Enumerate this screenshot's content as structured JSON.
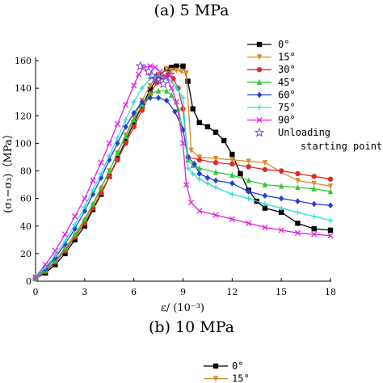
{
  "chart_data": [
    {
      "type": "line",
      "title": "(a) 5 MPa",
      "xlabel": "ε/ (10⁻³)",
      "ylabel": "(σ₁−σ₃)（MPa）",
      "xlim": [
        0,
        18
      ],
      "ylim": [
        0,
        160
      ],
      "xticks": [
        0,
        3,
        6,
        9,
        12,
        15,
        18
      ],
      "yticks": [
        0,
        20,
        40,
        60,
        80,
        100,
        120,
        140,
        160
      ],
      "grid": false,
      "legend_position": "top-right",
      "series": [
        {
          "name": "0°",
          "color": "#000000",
          "marker": "square",
          "x": [
            0,
            0.6,
            1.2,
            1.8,
            2.4,
            3.0,
            3.5,
            4.0,
            4.5,
            5.0,
            5.5,
            6.0,
            6.5,
            7.0,
            7.5,
            8.0,
            8.3,
            8.6,
            9.0,
            9.3,
            9.6,
            10.0,
            10.5,
            11.0,
            11.5,
            12.0,
            12.5,
            13.0,
            13.5,
            14.0,
            15.0,
            16.0,
            17.0,
            18.0
          ],
          "y": [
            2,
            6,
            12,
            20,
            30,
            40,
            52,
            63,
            76,
            89,
            102,
            115,
            127,
            139,
            149,
            154,
            155,
            156,
            156,
            145,
            125,
            115,
            112,
            108,
            102,
            92,
            78,
            66,
            58,
            53,
            50,
            42,
            38,
            37
          ]
        },
        {
          "name": "15°",
          "color": "#d98b2b",
          "marker": "triangle-down",
          "x": [
            0,
            0.6,
            1.2,
            1.8,
            2.4,
            3.0,
            3.5,
            4.0,
            4.5,
            5.0,
            5.5,
            6.0,
            6.5,
            7.0,
            7.5,
            8.0,
            8.3,
            8.6,
            8.9,
            9.2,
            9.5,
            10.0,
            11.0,
            12.0,
            13.0,
            14.0,
            15.0,
            16.0,
            17.0,
            18.0
          ],
          "y": [
            2,
            7,
            14,
            23,
            33,
            44,
            55,
            67,
            80,
            93,
            106,
            119,
            131,
            142,
            150,
            154,
            153,
            153,
            152,
            151,
            95,
            90,
            89,
            88,
            87,
            86,
            79,
            73,
            71,
            69
          ]
        },
        {
          "name": "30°",
          "color": "#e02a2a",
          "marker": "circle",
          "x": [
            0,
            0.6,
            1.2,
            1.8,
            2.4,
            3.0,
            3.5,
            4.0,
            4.5,
            5.0,
            5.5,
            6.0,
            6.5,
            7.0,
            7.4,
            7.8,
            8.1,
            8.4,
            8.7,
            9.0,
            9.3,
            10.0,
            11.0,
            12.0,
            13.0,
            14.0,
            15.0,
            16.0,
            17.0,
            18.0
          ],
          "y": [
            2,
            7,
            14,
            22,
            32,
            42,
            53,
            64,
            76,
            88,
            100,
            112,
            124,
            136,
            144,
            148,
            150,
            147,
            140,
            125,
            90,
            88,
            86,
            85,
            83,
            81,
            80,
            78,
            76,
            74
          ]
        },
        {
          "name": "45°",
          "color": "#2ecc33",
          "marker": "triangle-up",
          "x": [
            0,
            0.6,
            1.2,
            1.8,
            2.4,
            3.0,
            3.5,
            4.0,
            4.5,
            5.0,
            5.5,
            6.0,
            6.5,
            7.0,
            7.5,
            8.0,
            8.3,
            8.7,
            9.0,
            9.3,
            9.6,
            10.0,
            11.0,
            12.0,
            13.0,
            14.0,
            15.0,
            16.0,
            17.0,
            18.0
          ],
          "y": [
            2,
            8,
            15,
            24,
            34,
            45,
            56,
            68,
            80,
            93,
            105,
            117,
            128,
            136,
            138,
            138,
            135,
            125,
            110,
            88,
            84,
            82,
            79,
            77,
            73,
            70,
            69,
            68,
            67,
            65
          ]
        },
        {
          "name": "60°",
          "color": "#1f3fd6",
          "marker": "diamond",
          "x": [
            0,
            0.6,
            1.2,
            1.8,
            2.4,
            3.0,
            3.5,
            4.0,
            4.5,
            5.0,
            5.5,
            6.0,
            6.5,
            7.0,
            7.5,
            8.0,
            8.5,
            9.0,
            9.3,
            9.7,
            10.0,
            10.5,
            11.0,
            12.0,
            13.0,
            14.0,
            15.0,
            16.0,
            17.0,
            18.0
          ],
          "y": [
            3,
            9,
            17,
            27,
            38,
            51,
            63,
            75,
            88,
            100,
            112,
            122,
            130,
            133,
            133,
            131,
            123,
            110,
            90,
            85,
            78,
            75,
            73,
            71,
            65,
            62,
            60,
            58,
            56,
            55
          ]
        },
        {
          "name": "75°",
          "color": "#33d9d9",
          "marker": "cross",
          "x": [
            0,
            0.6,
            1.2,
            1.8,
            2.4,
            3.0,
            3.5,
            4.0,
            4.5,
            5.0,
            5.5,
            6.0,
            6.5,
            7.0,
            7.5,
            8.0,
            8.3,
            8.6,
            9.0,
            9.3,
            9.6,
            10.0,
            10.5,
            11.0,
            12.0,
            13.0,
            14.0,
            15.0,
            16.0,
            17.0,
            18.0
          ],
          "y": [
            3,
            10,
            19,
            29,
            41,
            54,
            66,
            78,
            91,
            104,
            117,
            130,
            140,
            147,
            149,
            147,
            145,
            140,
            133,
            82,
            78,
            74,
            71,
            68,
            63,
            60,
            56,
            53,
            50,
            47,
            44
          ]
        },
        {
          "name": "90°",
          "color": "#e020e0",
          "marker": "x",
          "x": [
            0,
            0.6,
            1.2,
            1.8,
            2.4,
            3.0,
            3.5,
            4.0,
            4.5,
            5.0,
            5.5,
            6.0,
            6.3,
            6.6,
            7.0,
            7.3,
            7.6,
            8.0,
            8.3,
            8.6,
            9.0,
            9.2,
            9.5,
            10.0,
            11.0,
            12.0,
            13.0,
            14.0,
            15.0,
            16.0,
            17.0,
            18.0
          ],
          "y": [
            3,
            12,
            22,
            34,
            47,
            60,
            73,
            86,
            100,
            114,
            128,
            142,
            150,
            155,
            156,
            155,
            152,
            148,
            140,
            130,
            100,
            70,
            57,
            51,
            48,
            45,
            42,
            39,
            37,
            35,
            34,
            33
          ]
        }
      ],
      "unloading_points": {
        "name": "Unloading\nstarting point",
        "x": [
          6.4,
          6.9,
          7.1,
          7.3,
          7.5,
          7.8,
          8.2
        ],
        "y": [
          156,
          152,
          149,
          147,
          146,
          143,
          150
        ]
      }
    },
    {
      "type": "line",
      "title": "(b) 10 MPa",
      "legend_visible": [
        "0°",
        "15°"
      ]
    }
  ]
}
